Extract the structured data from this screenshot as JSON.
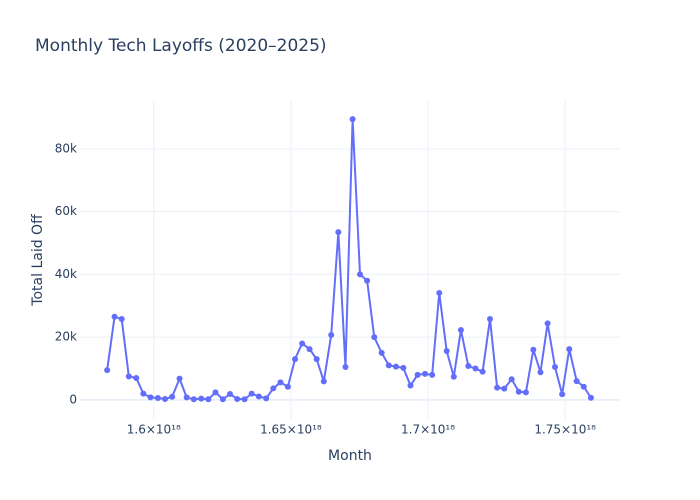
{
  "chart_data": {
    "type": "line",
    "title": "Monthly Tech Layoffs (2020–2025)",
    "x_label": "Month",
    "y_label": "Total Laid Off",
    "x": [
      1.583e+18,
      1.5857e+18,
      1.5883e+18,
      1.5909e+18,
      1.5936e+18,
      1.5962e+18,
      1.5988e+18,
      1.6015e+18,
      1.6041e+18,
      1.6067e+18,
      1.6094e+18,
      1.612e+18,
      1.6146e+18,
      1.6173e+18,
      1.6199e+18,
      1.6225e+18,
      1.6252e+18,
      1.6278e+18,
      1.6304e+18,
      1.6331e+18,
      1.6357e+18,
      1.6383e+18,
      1.641e+18,
      1.6436e+18,
      1.6462e+18,
      1.6489e+18,
      1.6515e+18,
      1.6541e+18,
      1.6568e+18,
      1.6594e+18,
      1.662e+18,
      1.6647e+18,
      1.6673e+18,
      1.6699e+18,
      1.6725e+18,
      1.6752e+18,
      1.6778e+18,
      1.6804e+18,
      1.6831e+18,
      1.6857e+18,
      1.6883e+18,
      1.691e+18,
      1.6936e+18,
      1.6962e+18,
      1.6989e+18,
      1.7015e+18,
      1.7041e+18,
      1.7068e+18,
      1.7094e+18,
      1.712e+18,
      1.7147e+18,
      1.7173e+18,
      1.7199e+18,
      1.7226e+18,
      1.7252e+18,
      1.7278e+18,
      1.7305e+18,
      1.7331e+18,
      1.7357e+18,
      1.7384e+18,
      1.741e+18,
      1.7436e+18,
      1.7463e+18,
      1.7489e+18,
      1.7515e+18,
      1.7542e+18,
      1.7568e+18,
      1.7594e+18
    ],
    "series": [
      {
        "name": "Total Laid Off",
        "color": "#636efa",
        "values": [
          9500,
          26500,
          25800,
          7500,
          7000,
          2000,
          800,
          600,
          300,
          1000,
          6800,
          800,
          200,
          400,
          200,
          2400,
          200,
          1900,
          300,
          200,
          2000,
          1100,
          500,
          3700,
          5600,
          4200,
          13000,
          18000,
          16200,
          13000,
          5900,
          20700,
          53500,
          10500,
          89500,
          40000,
          38000,
          20000,
          15000,
          11000,
          10600,
          10200,
          4600,
          8000,
          8300,
          8000,
          34100,
          15600,
          7400,
          22300,
          10800,
          10000,
          9000,
          25800,
          3900,
          3600,
          6600,
          2600,
          2400,
          16000,
          8800,
          24400,
          10500,
          1800,
          16200,
          6000,
          4200,
          700
        ]
      }
    ],
    "xlim": [
      1.5731e+18,
      1.77e+18
    ],
    "xticks": [
      {
        "value": 1.6e+18,
        "label": "1.6×10¹⁸"
      },
      {
        "value": 1.65e+18,
        "label": "1.65×10¹⁸"
      },
      {
        "value": 1.7e+18,
        "label": "1.7×10¹⁸"
      },
      {
        "value": 1.75e+18,
        "label": "1.75×10¹⁸"
      }
    ],
    "ylim": [
      -6400,
      95600
    ],
    "yticks": [
      0,
      {
        "value": 20000,
        "label": "20k"
      },
      {
        "value": 40000,
        "label": "40k"
      },
      {
        "value": 60000,
        "label": "60k"
      },
      {
        "value": 80000,
        "label": "80k"
      }
    ],
    "grid": true
  }
}
